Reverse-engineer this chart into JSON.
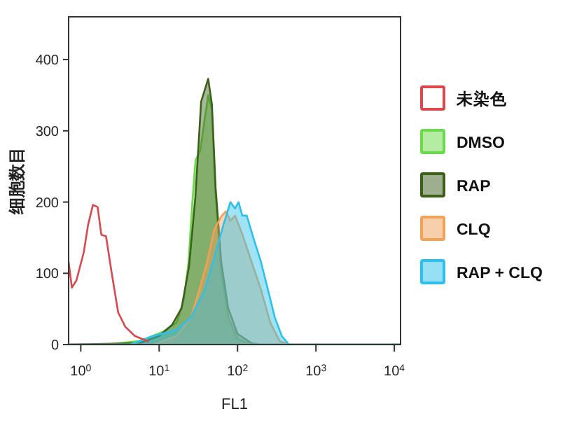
{
  "chart_data": {
    "type": "area",
    "xlabel": "FL1",
    "ylabel": "细胞数目",
    "log": "x",
    "xlim": [
      0.7,
      12000
    ],
    "xticks": [
      {
        "value": 1,
        "label": "10$^{0}$"
      },
      {
        "value": 10,
        "label": "10$^{1}$"
      },
      {
        "value": 100,
        "label": "10$^{2}$"
      },
      {
        "value": 1000,
        "label": "10$^{3}$"
      },
      {
        "value": 10000,
        "label": "10$^{4}$"
      }
    ],
    "ylim": [
      0,
      460
    ],
    "yticks": [
      0,
      100,
      200,
      300,
      400
    ],
    "legend": "right",
    "grid": false,
    "series": [
      {
        "name": "未染色",
        "type": "line",
        "color": "#d9484c",
        "x": [
          0.7,
          0.77,
          0.88,
          1.09,
          1.24,
          1.43,
          1.64,
          1.83,
          2.1,
          2.46,
          3.0,
          3.7,
          4.9,
          7.4
        ],
        "values": [
          116,
          80,
          90,
          129,
          168,
          196,
          193,
          154,
          152,
          103,
          45,
          25,
          12,
          4
        ]
      },
      {
        "name": "DMSO",
        "color": "#6cd94a",
        "x": [
          0.7,
          2.15,
          5.6,
          11.2,
          16.8,
          20.7,
          23.7,
          26.5,
          29.1,
          33.4,
          38.3,
          42.2,
          47.1,
          51.8,
          61.9,
          76,
          100,
          151,
          12000
        ],
        "values": [
          0,
          0,
          5,
          18,
          31,
          64,
          116,
          200,
          259,
          272,
          318,
          350,
          330,
          219,
          102,
          38,
          8,
          0,
          0
        ]
      },
      {
        "name": "RAP",
        "color": "#3d5f1c",
        "x": [
          0.7,
          5.6,
          10,
          14.7,
          19.3,
          24,
          29,
          34.3,
          42.2,
          47.1,
          52.5,
          62,
          76,
          100,
          151,
          199,
          12000
        ],
        "values": [
          0,
          2,
          12,
          28,
          51,
          109,
          207,
          341,
          373,
          337,
          220,
          115,
          51,
          15,
          2,
          0,
          0
        ]
      },
      {
        "name": "CLQ",
        "color": "#f0a258",
        "x": [
          0.7,
          8.5,
          16.8,
          25.4,
          31.2,
          41,
          50.4,
          62,
          71,
          81,
          93,
          115,
          151,
          199,
          261,
          344,
          452,
          12000
        ],
        "values": [
          0,
          0,
          12,
          38,
          70,
          116,
          161,
          180,
          187,
          174,
          181,
          155,
          116,
          77,
          31,
          5,
          0,
          0
        ]
      },
      {
        "name": "RAP + CLQ",
        "color": "#2ec0ea",
        "x": [
          0.7,
          4.3,
          8.5,
          16.8,
          25.4,
          38.3,
          50.4,
          66,
          81,
          93,
          103,
          115,
          131,
          161,
          199,
          244,
          299,
          367,
          452,
          12000
        ],
        "values": [
          0,
          0,
          12,
          21,
          38,
          77,
          122,
          168,
          200,
          191,
          200,
          181,
          181,
          148,
          116,
          77,
          38,
          12,
          0,
          0
        ]
      }
    ]
  }
}
